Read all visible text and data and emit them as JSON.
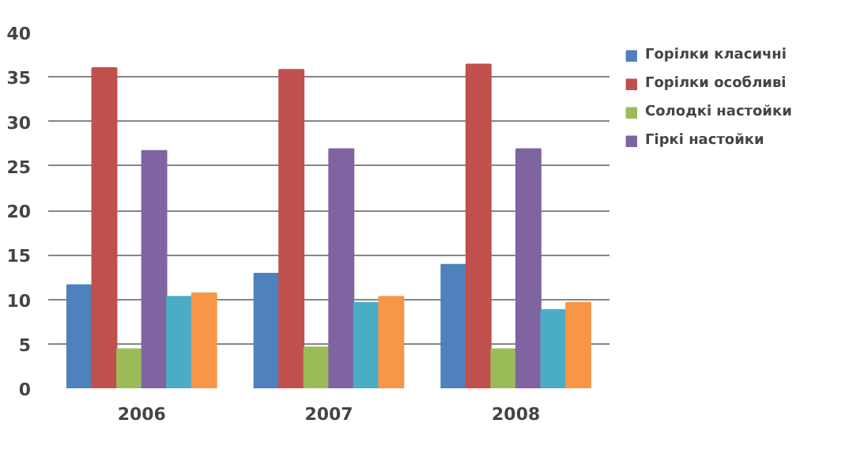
{
  "chart_data": {
    "type": "bar",
    "categories": [
      "2006",
      "2007",
      "2008"
    ],
    "series": [
      {
        "name": "Горілки класичні",
        "color": "#4f81bd",
        "values": [
          11.6,
          12.9,
          13.9
        ]
      },
      {
        "name": "Горілки особливі",
        "color": "#c0504d",
        "values": [
          36.0,
          35.8,
          36.4
        ]
      },
      {
        "name": "Солодкі настойки",
        "color": "#9bbb59",
        "values": [
          4.4,
          4.6,
          4.4
        ]
      },
      {
        "name": "Гіркі настойки",
        "color": "#8064a2",
        "values": [
          26.7,
          26.9,
          26.9
        ]
      },
      {
        "color": "#4bacc6",
        "values": [
          10.3,
          9.6,
          8.8
        ]
      },
      {
        "color": "#f79646",
        "values": [
          10.7,
          10.3,
          9.6
        ]
      }
    ],
    "ylim": [
      0,
      40
    ],
    "yticks": [
      0,
      5,
      10,
      15,
      20,
      25,
      30,
      35,
      40
    ],
    "grid": "y",
    "legend": "right"
  }
}
